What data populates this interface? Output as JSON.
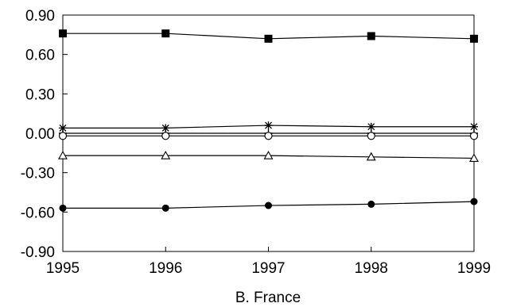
{
  "chart_data": {
    "type": "line",
    "title": "",
    "xlabel": "B. France",
    "ylabel": "",
    "x": [
      1995,
      1996,
      1997,
      1998,
      1999
    ],
    "xticks": [
      "1995",
      "1996",
      "1997",
      "1998",
      "1999"
    ],
    "ylim": [
      -0.9,
      0.9
    ],
    "yticks": [
      "0.90",
      "0.60",
      "0.30",
      "0.00",
      "-0.30",
      "-0.60",
      "-0.90"
    ],
    "grid": false,
    "legend": "none",
    "series": [
      {
        "marker": "filled-square",
        "values": [
          0.76,
          0.76,
          0.72,
          0.74,
          0.72
        ]
      },
      {
        "marker": "asterisk",
        "values": [
          0.04,
          0.04,
          0.06,
          0.05,
          0.05
        ]
      },
      {
        "marker": "plus",
        "values": [
          0.0,
          0.0,
          0.0,
          0.0,
          0.0
        ]
      },
      {
        "marker": "open-circle",
        "values": [
          -0.02,
          -0.02,
          -0.02,
          -0.02,
          -0.02
        ]
      },
      {
        "marker": "open-triangle",
        "values": [
          -0.17,
          -0.17,
          -0.17,
          -0.18,
          -0.19
        ]
      },
      {
        "marker": "filled-circle",
        "values": [
          -0.57,
          -0.57,
          -0.55,
          -0.54,
          -0.52
        ]
      }
    ]
  }
}
